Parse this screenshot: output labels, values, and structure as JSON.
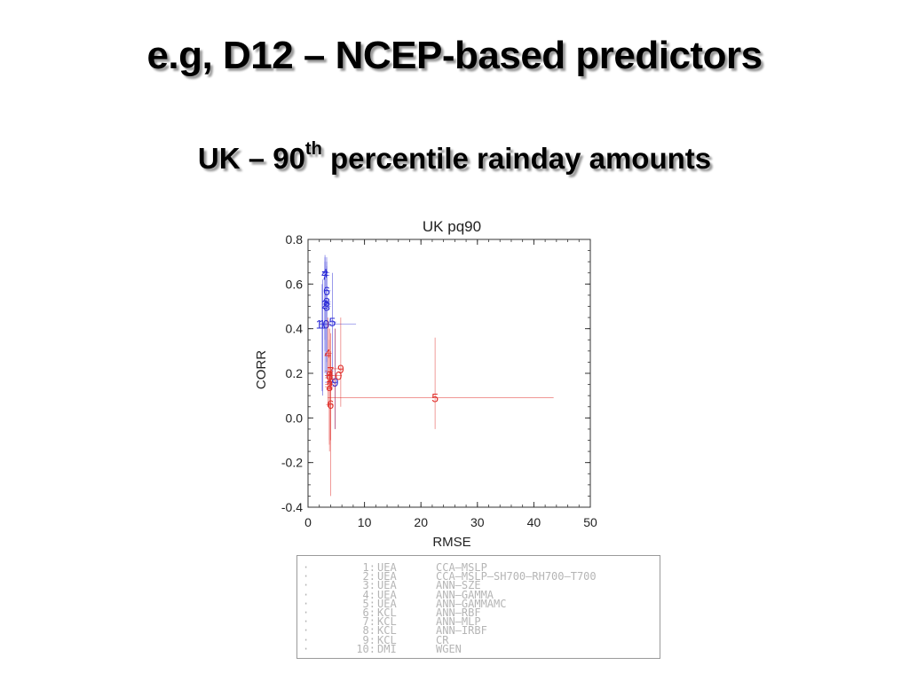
{
  "slide": {
    "title": "e.g, D12 – NCEP-based predictors",
    "subtitle_pre": "UK – 90",
    "subtitle_sup": "th",
    "subtitle_post": " percentile rainday amounts"
  },
  "chart_data": {
    "type": "scatter",
    "title": "UK pq90",
    "xlabel": "RMSE",
    "ylabel": "CORR",
    "xlim": [
      0,
      50
    ],
    "ylim": [
      -0.4,
      0.8
    ],
    "xticks": [
      "0",
      "10",
      "20",
      "30",
      "40",
      "50"
    ],
    "yticks": [
      "-0.4",
      "-0.2",
      "0.0",
      "0.2",
      "0.4",
      "0.6",
      "0.8"
    ],
    "grid": false,
    "series": [
      {
        "color": "#2b2bd6",
        "points": [
          {
            "label": "1",
            "x": 2.5,
            "y": 0.42,
            "x_lo": 2.0,
            "x_hi": 8.5,
            "y_lo": 0.12,
            "y_hi": 0.6
          },
          {
            "label": "2",
            "x": 3.0,
            "y": 0.51,
            "x_lo": 2.5,
            "x_hi": 4.0,
            "y_lo": 0.2,
            "y_hi": 0.7
          },
          {
            "label": "3",
            "x": 3.3,
            "y": 0.5,
            "x_lo": 2.8,
            "x_hi": 4.0,
            "y_lo": 0.18,
            "y_hi": 0.68
          },
          {
            "label": "4",
            "x": 3.0,
            "y": 0.65,
            "x_lo": 2.5,
            "x_hi": 3.8,
            "y_lo": 0.35,
            "y_hi": 0.72
          },
          {
            "label": "5",
            "x": 4.3,
            "y": 0.43,
            "x_lo": 3.5,
            "x_hi": 5.0,
            "y_lo": 0.15,
            "y_hi": 0.65
          },
          {
            "label": "6",
            "x": 3.3,
            "y": 0.57,
            "x_lo": 2.8,
            "x_hi": 4.0,
            "y_lo": 0.25,
            "y_hi": 0.72
          },
          {
            "label": "7",
            "x": 3.0,
            "y": 0.64,
            "x_lo": 2.5,
            "x_hi": 3.8,
            "y_lo": 0.3,
            "y_hi": 0.73
          },
          {
            "label": "8",
            "x": 3.3,
            "y": 0.52,
            "x_lo": 2.8,
            "x_hi": 4.0,
            "y_lo": 0.2,
            "y_hi": 0.7
          },
          {
            "label": "9",
            "x": 4.8,
            "y": 0.16,
            "x_lo": 3.0,
            "x_hi": 5.0,
            "y_lo": -0.05,
            "y_hi": 0.4
          },
          {
            "label": "10",
            "x": 2.6,
            "y": 0.42,
            "x_lo": 2.0,
            "x_hi": 3.5,
            "y_lo": 0.1,
            "y_hi": 0.62
          }
        ]
      },
      {
        "color": "#e0302c",
        "points": [
          {
            "label": "1",
            "x": 3.8,
            "y": 0.18,
            "x_lo": 3.0,
            "x_hi": 4.5,
            "y_lo": -0.15,
            "y_hi": 0.4
          },
          {
            "label": "2",
            "x": 3.8,
            "y": 0.15,
            "x_lo": 3.0,
            "x_hi": 4.5,
            "y_lo": -0.12,
            "y_hi": 0.35
          },
          {
            "label": "3",
            "x": 3.8,
            "y": 0.14,
            "x_lo": 3.0,
            "x_hi": 4.5,
            "y_lo": -0.1,
            "y_hi": 0.35
          },
          {
            "label": "4",
            "x": 3.5,
            "y": 0.29,
            "x_lo": 3.0,
            "x_hi": 4.2,
            "y_lo": 0.05,
            "y_hi": 0.45
          },
          {
            "label": "5",
            "x": 22.5,
            "y": 0.09,
            "x_lo": 3.5,
            "x_hi": 43.5,
            "y_lo": -0.05,
            "y_hi": 0.36
          },
          {
            "label": "6",
            "x": 4.0,
            "y": 0.06,
            "x_lo": 3.2,
            "x_hi": 4.5,
            "y_lo": -0.35,
            "y_hi": 0.3
          },
          {
            "label": "7",
            "x": 4.0,
            "y": 0.21,
            "x_lo": 3.0,
            "x_hi": 4.5,
            "y_lo": -0.1,
            "y_hi": 0.38
          },
          {
            "label": "8",
            "x": 3.8,
            "y": 0.19,
            "x_lo": 3.0,
            "x_hi": 4.5,
            "y_lo": -0.12,
            "y_hi": 0.4
          },
          {
            "label": "9",
            "x": 5.8,
            "y": 0.22,
            "x_lo": 3.5,
            "x_hi": 6.0,
            "y_lo": 0.05,
            "y_hi": 0.45
          },
          {
            "label": "10",
            "x": 4.8,
            "y": 0.19,
            "x_lo": 3.0,
            "x_hi": 6.0,
            "y_lo": -0.05,
            "y_hi": 0.4
          }
        ]
      }
    ]
  },
  "legend": {
    "items": [
      {
        "num": "1:",
        "inst": "UEA",
        "method": "CCA–MSLP"
      },
      {
        "num": "2:",
        "inst": "UEA",
        "method": "CCA–MSLP–SH700–RH700–T700"
      },
      {
        "num": "3:",
        "inst": "UEA",
        "method": "ANN–SZE"
      },
      {
        "num": "4:",
        "inst": "UEA",
        "method": "ANN–GAMMA"
      },
      {
        "num": "5:",
        "inst": "UEA",
        "method": "ANN–GAMMAMC"
      },
      {
        "num": "6:",
        "inst": "KCL",
        "method": "ANN–RBF"
      },
      {
        "num": "7:",
        "inst": "KCL",
        "method": "ANN–MLP"
      },
      {
        "num": "8:",
        "inst": "KCL",
        "method": "ANN–IRBF"
      },
      {
        "num": "9:",
        "inst": "KCL",
        "method": "CR"
      },
      {
        "num": "10:",
        "inst": "DMI",
        "method": "WGEN"
      }
    ]
  }
}
